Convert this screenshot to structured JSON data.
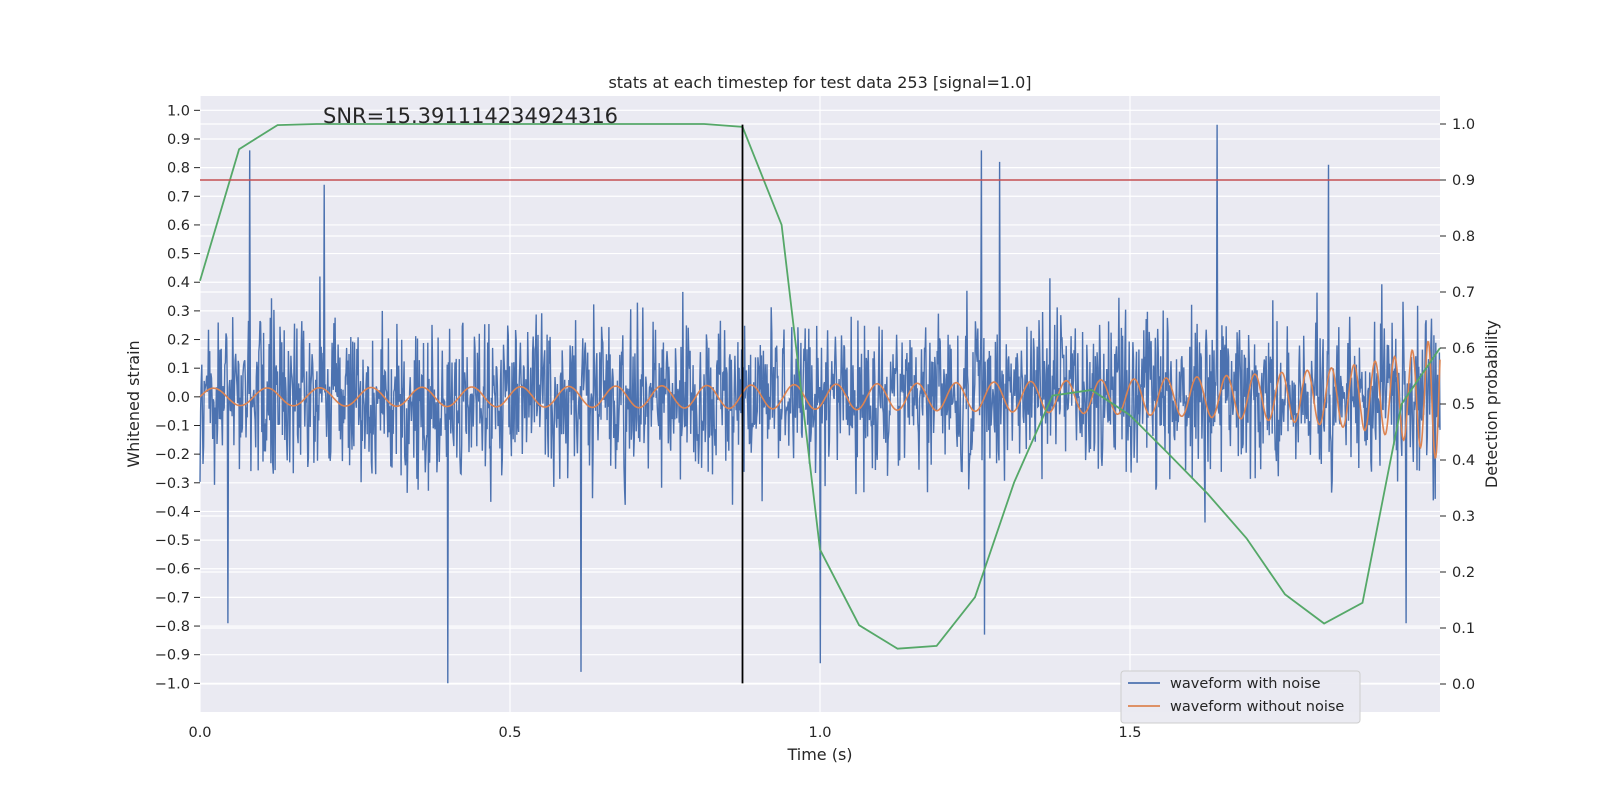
{
  "chart_data": {
    "type": "line",
    "title": "stats at each timestep for test data 253 [signal=1.0]",
    "xlabel": "Time (s)",
    "ylabel": "Whitened strain",
    "y2label": "Detection probability",
    "annotation": "SNR=15.391114234924316",
    "xlim": [
      0.0,
      2.0
    ],
    "ylim": [
      -1.1,
      1.05
    ],
    "y2lim": [
      -0.05,
      1.05
    ],
    "xticks": [
      0.0,
      0.5,
      1.0,
      1.5
    ],
    "xtick_labels": [
      "0.0",
      "0.5",
      "1.0",
      "1.5"
    ],
    "yticks": [
      1.0,
      0.9,
      0.8,
      0.7,
      0.6,
      0.5,
      0.4,
      0.3,
      0.2,
      0.1,
      0.0,
      -0.1,
      -0.2,
      -0.3,
      -0.4,
      -0.5,
      -0.6,
      -0.7,
      -0.8,
      -0.9,
      -1.0
    ],
    "ytick_labels": [
      "1.0",
      "0.9",
      "0.8",
      "0.7",
      "0.6",
      "0.5",
      "0.4",
      "0.3",
      "0.2",
      "0.1",
      "0.0",
      "−0.1",
      "−0.2",
      "−0.3",
      "−0.4",
      "−0.5",
      "−0.6",
      "−0.7",
      "−0.8",
      "−0.9",
      "−1.0"
    ],
    "y2ticks": [
      0.0,
      0.1,
      0.2,
      0.3,
      0.4,
      0.5,
      0.6,
      0.7,
      0.8,
      0.9,
      1.0
    ],
    "y2tick_labels": [
      "0.0",
      "0.1",
      "0.2",
      "0.3",
      "0.4",
      "0.5",
      "0.6",
      "0.7",
      "0.8",
      "0.9",
      "1.0"
    ],
    "grid": true,
    "legend": {
      "placement": "lower-right",
      "entries": [
        "waveform with noise",
        "waveform without noise"
      ]
    },
    "colors": {
      "noisy": "#4c72b0",
      "clean": "#dd8452",
      "probability": "#55a868",
      "threshold": "#c44e52",
      "marker": "#000000",
      "background": "#eaeaf2"
    },
    "threshold": {
      "axis": "right",
      "value": 0.9
    },
    "marker_line": {
      "x": 0.875,
      "y_range": [
        -1.0,
        0.95
      ]
    },
    "series": [
      {
        "name": "waveform with noise",
        "axis": "left",
        "color": "#4c72b0",
        "x_range": [
          0.0,
          2.0
        ],
        "n_samples": 2048,
        "peaks": [
          {
            "x": 0.08,
            "y": 0.86
          },
          {
            "x": 0.2,
            "y": 0.74
          },
          {
            "x": 1.64,
            "y": 0.95
          },
          {
            "x": 1.26,
            "y": 0.86
          },
          {
            "x": 1.82,
            "y": 0.81
          },
          {
            "x": 1.29,
            "y": 0.82
          },
          {
            "x": 0.4,
            "y": -1.0
          },
          {
            "x": 0.615,
            "y": -0.96
          },
          {
            "x": 1.0,
            "y": -0.93
          },
          {
            "x": 0.045,
            "y": -0.79
          },
          {
            "x": 1.265,
            "y": -0.83
          },
          {
            "x": 1.945,
            "y": -0.79
          }
        ]
      },
      {
        "name": "waveform without noise",
        "axis": "left",
        "color": "#dd8452",
        "x_range": [
          0.0,
          2.0
        ],
        "n_samples": 2048
      },
      {
        "name": "",
        "axis": "right",
        "color": "#55a868",
        "x": [
          0.0,
          0.063,
          0.125,
          0.188,
          0.25,
          0.313,
          0.375,
          0.438,
          0.5,
          0.563,
          0.625,
          0.688,
          0.75,
          0.813,
          0.875,
          0.938,
          1.0,
          1.063,
          1.125,
          1.188,
          1.25,
          1.313,
          1.375,
          1.438,
          1.5,
          1.563,
          1.625,
          1.688,
          1.75,
          1.813,
          1.875,
          1.938,
          2.0
        ],
        "y": [
          0.72,
          0.955,
          0.998,
          1.0,
          1.0,
          1.0,
          1.0,
          1.0,
          1.0,
          1.0,
          1.0,
          1.0,
          1.0,
          1.0,
          0.995,
          0.82,
          0.24,
          0.105,
          0.063,
          0.068,
          0.155,
          0.36,
          0.515,
          0.525,
          0.48,
          0.41,
          0.34,
          0.26,
          0.16,
          0.108,
          0.145,
          0.5,
          0.6
        ]
      }
    ]
  }
}
